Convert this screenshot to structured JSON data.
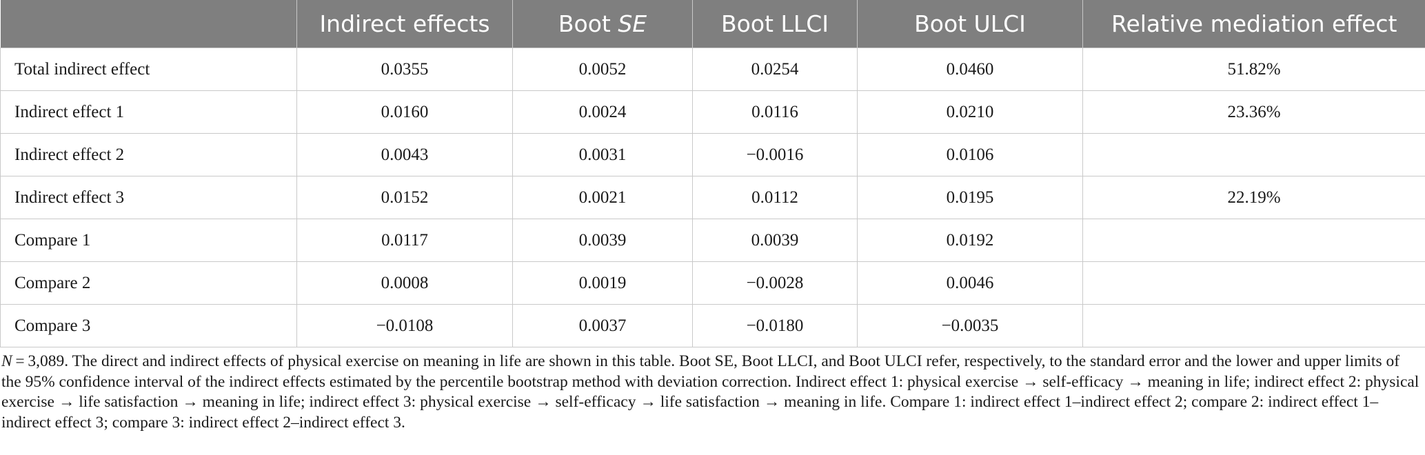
{
  "table": {
    "columns": [
      "",
      "Indirect effects",
      "Boot ",
      "Boot LLCI",
      "Boot ULCI",
      "Relative mediation effect"
    ],
    "boot_se_italic": "SE",
    "rows": [
      [
        "Total indirect effect",
        "0.0355",
        "0.0052",
        "0.0254",
        "0.0460",
        "51.82%"
      ],
      [
        "Indirect effect 1",
        "0.0160",
        "0.0024",
        "0.0116",
        "0.0210",
        "23.36%"
      ],
      [
        "Indirect effect 2",
        "0.0043",
        "0.0031",
        "−0.0016",
        "0.0106",
        ""
      ],
      [
        "Indirect effect 3",
        "0.0152",
        "0.0021",
        "0.0112",
        "0.0195",
        "22.19%"
      ],
      [
        "Compare 1",
        "0.0117",
        "0.0039",
        "0.0039",
        "0.0192",
        ""
      ],
      [
        "Compare 2",
        "0.0008",
        "0.0019",
        "−0.0028",
        "0.0046",
        ""
      ],
      [
        "Compare 3",
        "−0.0108",
        "0.0037",
        "−0.0180",
        "−0.0035",
        ""
      ]
    ]
  },
  "footnote": {
    "n_symbol": "N",
    "text": " = 3,089. The direct and indirect effects of physical exercise on meaning in life are shown in this table. Boot SE, Boot LLCI, and Boot ULCI refer, respectively, to the standard error and the lower and upper limits of the 95% confidence interval of the indirect effects estimated by the percentile bootstrap method with deviation correction. Indirect effect 1: physical exercise → self-efficacy → meaning in life; indirect effect 2: physical exercise → life satisfaction → meaning in life; indirect effect 3: physical exercise → self-efficacy → life satisfaction → meaning in life. Compare 1: indirect effect 1–indirect effect 2; compare 2: indirect effect 1–indirect effect 3; compare 3: indirect effect 2–indirect effect 3."
  }
}
